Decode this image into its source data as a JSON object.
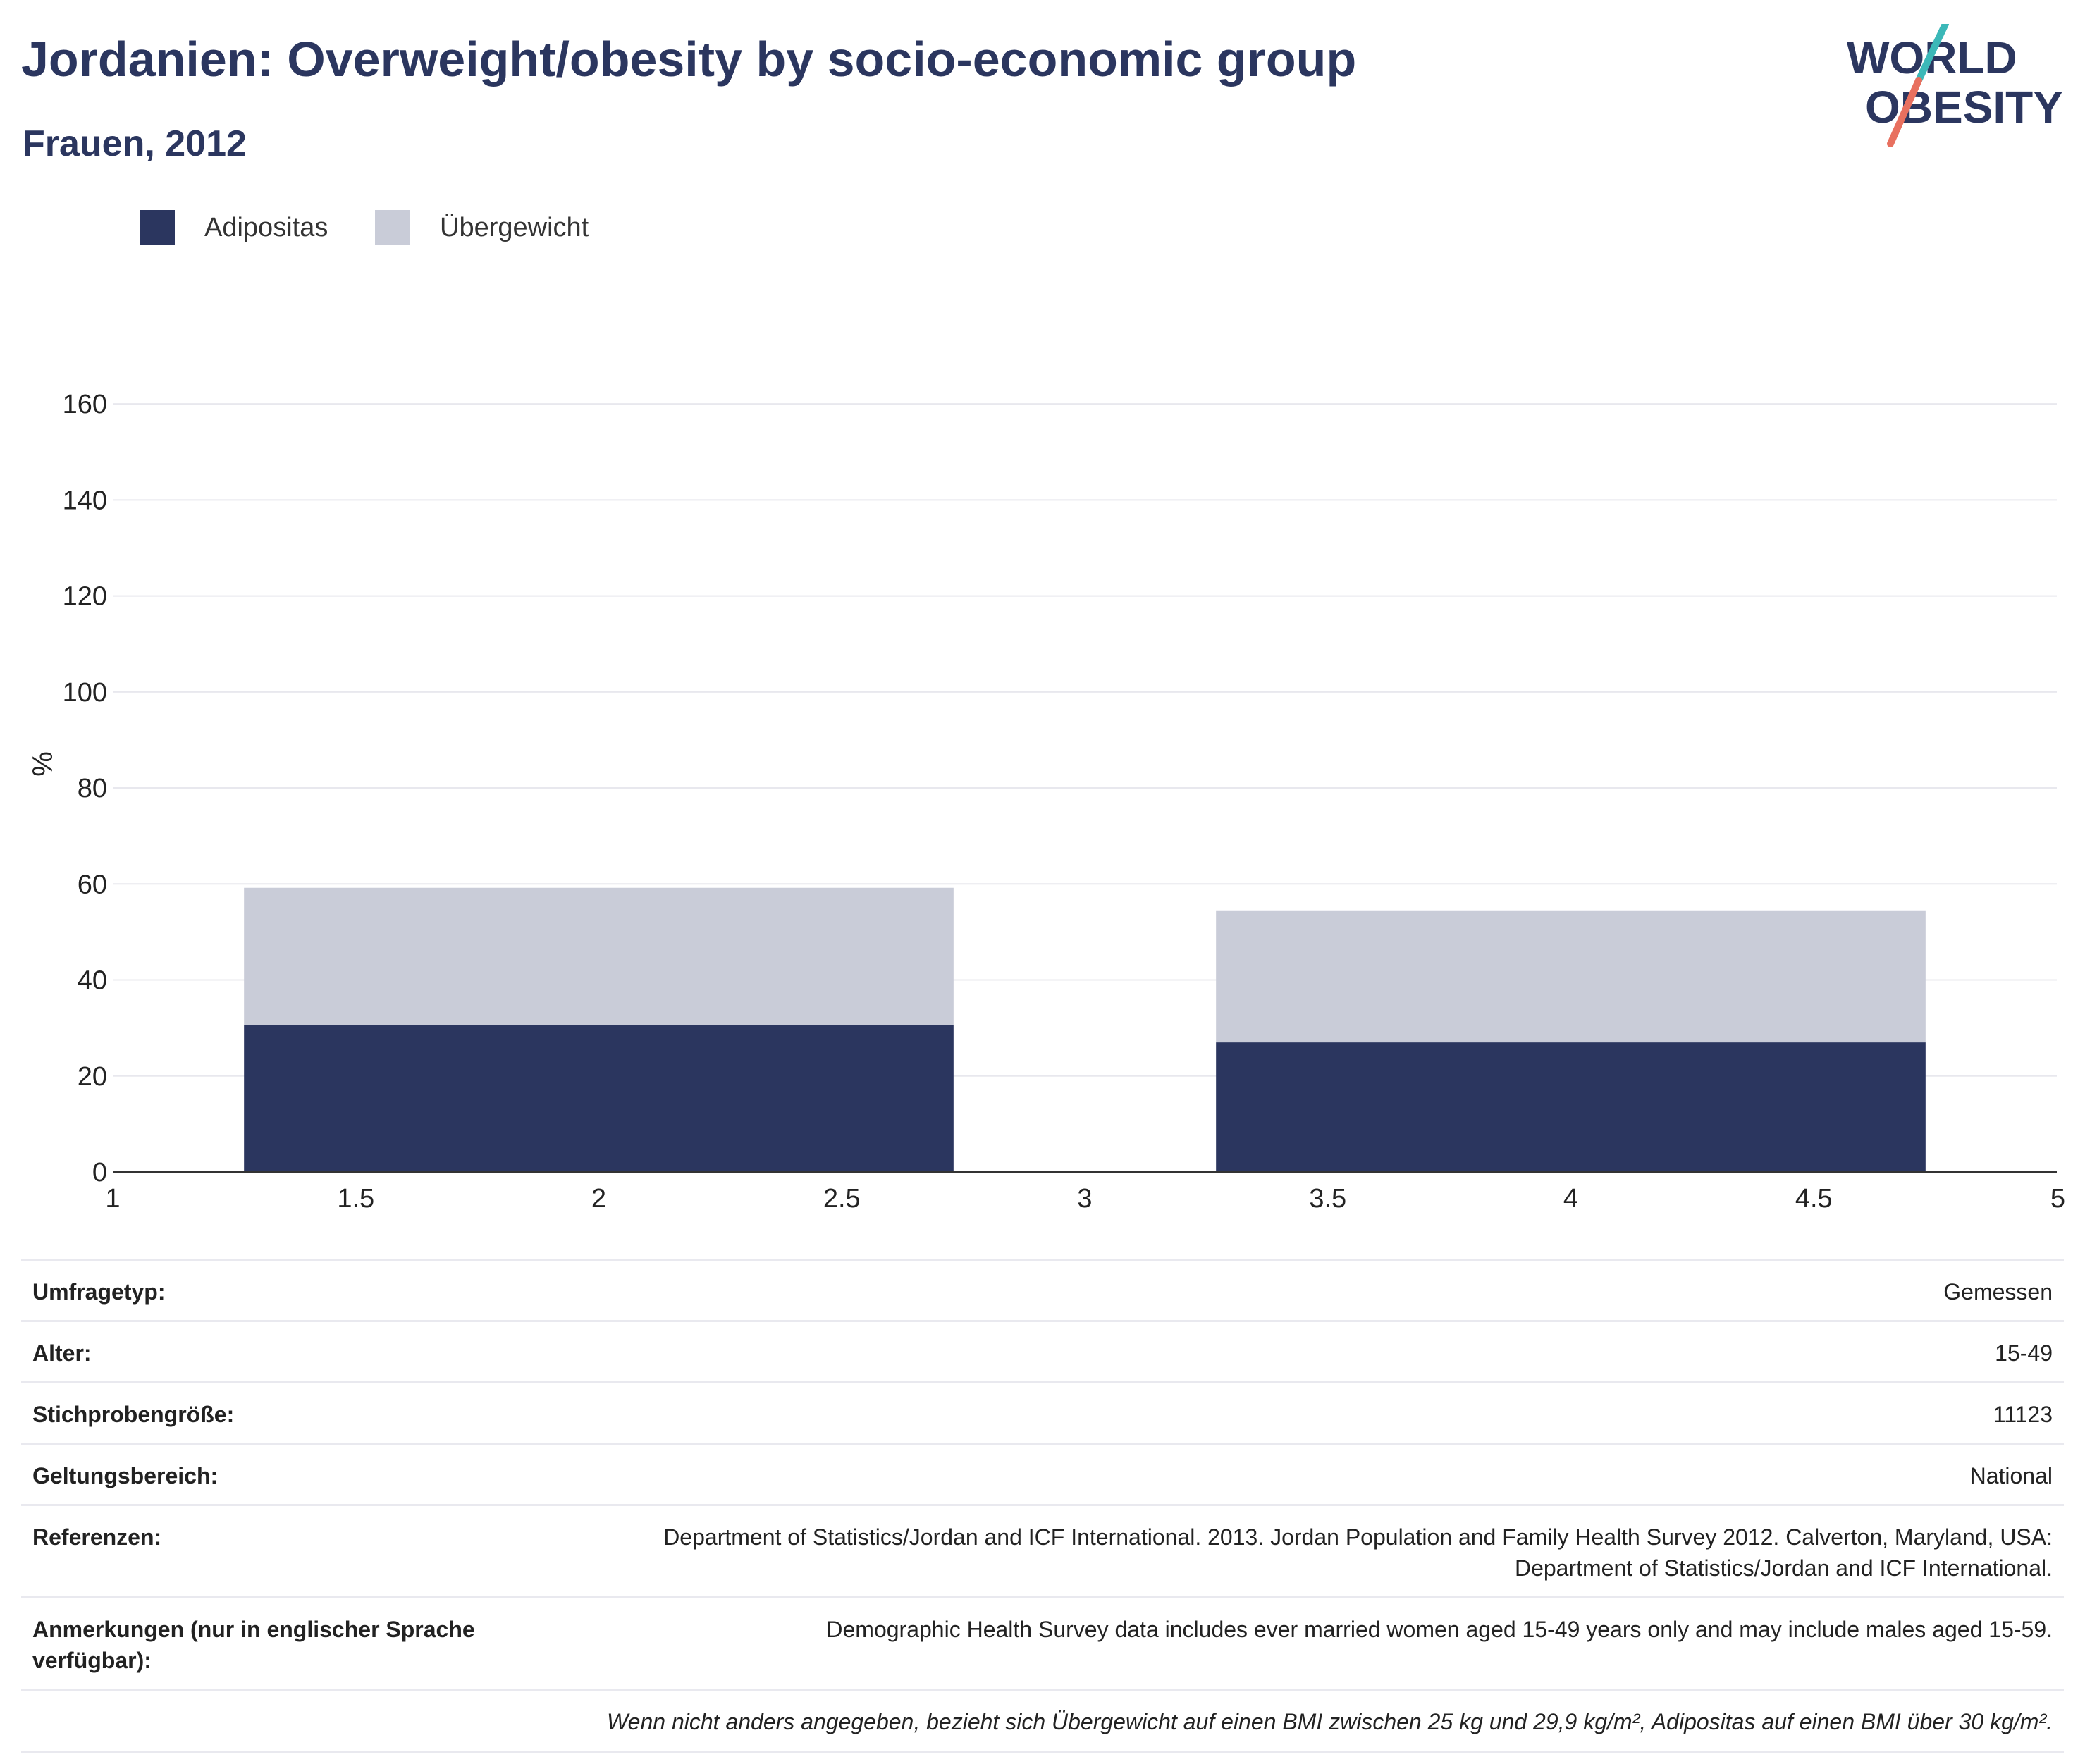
{
  "header": {
    "title": "Jordanien: Overweight/obesity by socio-economic group",
    "subtitle": "Frauen, 2012"
  },
  "logo": {
    "line1": "WORLD",
    "line2": "OBESITY",
    "accent_teal": "#3bb8b8",
    "accent_coral": "#e8705f"
  },
  "legend": [
    {
      "label": "Adipositas",
      "color": "#2b365f"
    },
    {
      "label": "Übergewicht",
      "color": "#c9ccd8"
    }
  ],
  "chart_data": {
    "type": "bar",
    "stacked": true,
    "ylabel": "%",
    "xlabel": "",
    "xlim": [
      1,
      5
    ],
    "ylim": [
      0,
      170
    ],
    "x_ticks": [
      "1",
      "1.5",
      "2",
      "2.5",
      "3",
      "3.5",
      "4",
      "4.5",
      "5"
    ],
    "y_ticks": [
      "0",
      "20",
      "40",
      "60",
      "80",
      "100",
      "120",
      "140",
      "160"
    ],
    "grid": true,
    "bars": [
      {
        "x_start": 1.27,
        "x_end": 2.73
      },
      {
        "x_start": 3.27,
        "x_end": 4.73
      }
    ],
    "series": [
      {
        "name": "Adipositas",
        "color": "#2b365f",
        "values": [
          30.6,
          27.0
        ]
      },
      {
        "name": "Übergewicht",
        "color": "#c9ccd8",
        "values": [
          28.6,
          27.5
        ]
      }
    ]
  },
  "info": {
    "rows": [
      {
        "key": "Umfragetyp:",
        "value": "Gemessen"
      },
      {
        "key": "Alter:",
        "value": "15-49"
      },
      {
        "key": "Stichprobengröße:",
        "value": "11123"
      },
      {
        "key": "Geltungsbereich:",
        "value": "National"
      },
      {
        "key": "Referenzen:",
        "value": "Department of Statistics/Jordan and ICF International. 2013. Jordan Population and Family Health Survey 2012. Calverton, Maryland, USA: Department of Statistics/Jordan and ICF International."
      },
      {
        "key": "Anmerkungen (nur in englischer Sprache verfügbar):",
        "value": "Demographic Health Survey data includes ever married women aged 15-49 years only and may include males aged 15-59."
      }
    ],
    "note": "Wenn nicht anders angegeben, bezieht sich Übergewicht auf einen BMI zwischen 25 kg und 29,9 kg/m², Adipositas auf einen BMI über 30 kg/m²."
  }
}
